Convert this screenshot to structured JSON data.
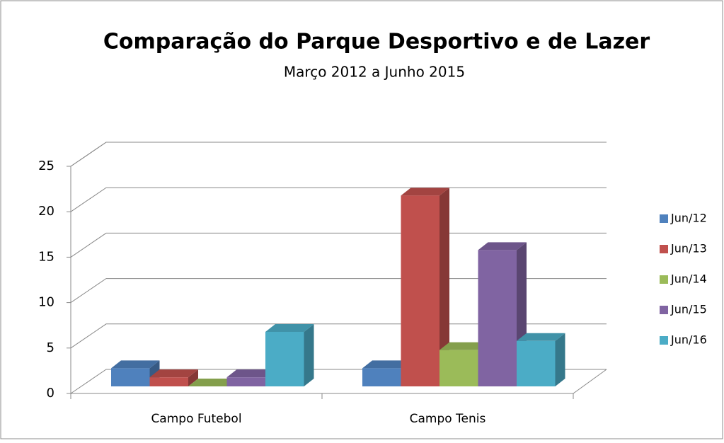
{
  "chart_data": {
    "type": "bar3d",
    "title": "Comparação do Parque Desportivo e de Lazer",
    "subtitle": "Março 2012 a Junho 2015",
    "categories": [
      "Campo Futebol",
      "Campo Tenis"
    ],
    "series": [
      {
        "name": "Jun/12",
        "color": "#4f81bd",
        "values": [
          2,
          2
        ]
      },
      {
        "name": "Jun/13",
        "color": "#c0504d",
        "values": [
          1,
          21
        ]
      },
      {
        "name": "Jun/14",
        "color": "#9bbb59",
        "values": [
          0,
          4
        ]
      },
      {
        "name": "Jun/15",
        "color": "#8064a2",
        "values": [
          1,
          15
        ]
      },
      {
        "name": "Jun/16",
        "color": "#4bacc6",
        "values": [
          6,
          5
        ]
      }
    ],
    "ylim": [
      0,
      25
    ],
    "yticks": [
      0,
      5,
      10,
      15,
      20,
      25
    ],
    "grid": true,
    "legend": "right"
  }
}
